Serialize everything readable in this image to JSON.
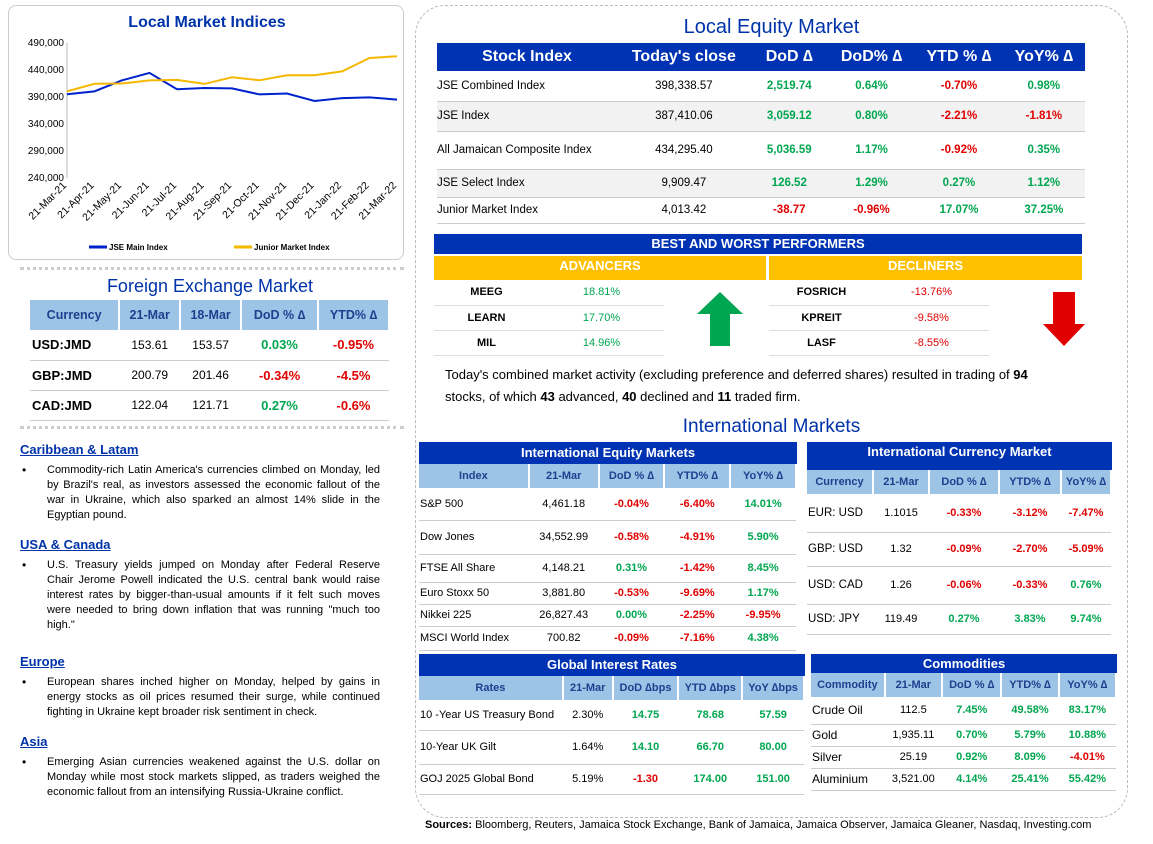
{
  "chart": {
    "title": "Local Market Indices",
    "chart_data": {
      "type": "line",
      "title": "Local Market Indices",
      "y_ticks": [
        "490,000",
        "440,000",
        "390,000",
        "340,000",
        "290,000",
        "240,000"
      ],
      "ylim": [
        240000,
        490000
      ],
      "x_ticks": [
        "21-Mar-21",
        "21-Apr-21",
        "21-May-21",
        "21-Jun-21",
        "21-Jul-21",
        "21-Aug-21",
        "21-Sep-21",
        "21-Oct-21",
        "21-Nov-21",
        "21-Dec-21",
        "21-Jan-22",
        "21-Feb-22",
        "21-Mar-22"
      ],
      "legend_position": "bottom",
      "series": [
        {
          "name": "JSE Main Index",
          "color": "#0022cc",
          "values": [
            395000,
            398000,
            425000,
            430000,
            408000,
            405000,
            405000,
            398000,
            392000,
            387000,
            385000,
            390000,
            387000
          ]
        },
        {
          "name": "Junior Market Index",
          "color": "#f5b800",
          "values": [
            405000,
            410000,
            418000,
            420000,
            420000,
            418000,
            422000,
            425000,
            428000,
            430000,
            440000,
            458000,
            470000
          ]
        }
      ]
    }
  },
  "fx": {
    "title": "Foreign Exchange Market",
    "headers": [
      "Currency",
      "21-Mar",
      "18-Mar",
      "DoD % ∆",
      "YTD% ∆"
    ],
    "rows": [
      {
        "cur": "USD:JMD",
        "a": "153.61",
        "b": "153.57",
        "dod": "0.03%",
        "ytd": "-0.95%"
      },
      {
        "cur": "GBP:JMD",
        "a": "200.79",
        "b": "201.46",
        "dod": "-0.34%",
        "ytd": "-4.5%"
      },
      {
        "cur": "CAD:JMD",
        "a": "122.04",
        "b": "121.71",
        "dod": "0.27%",
        "ytd": "-0.6%"
      }
    ]
  },
  "news": [
    {
      "head": "Caribbean & Latam",
      "body": "Commodity-rich Latin America's currencies climbed on Monday, led by Brazil's real, as investors assessed the economic fallout of the war in Ukraine, which also sparked an almost 14% slide in the Egyptian pound."
    },
    {
      "head": "USA & Canada",
      "body": "U.S. Treasury yields jumped on Monday after Federal Reserve Chair Jerome Powell indicated the U.S. central bank would raise interest rates by bigger-than-usual amounts if it felt such moves were needed to bring down inflation that was running \"much too high.\""
    },
    {
      "head": "Europe",
      "body": "European shares inched higher on Monday, helped by gains in energy stocks as oil prices resumed their surge, while continued fighting in Ukraine kept broader risk sentiment in check."
    },
    {
      "head": "Asia",
      "body": "Emerging Asian currencies weakened against the U.S. dollar on Monday while most stock markets slipped, as traders weighed the economic fallout from an intensifying Russia-Ukraine conflict."
    }
  ],
  "equity": {
    "title": "Local Equity Market",
    "headers": [
      "Stock Index",
      "Today's close",
      "DoD  ∆",
      "DoD% ∆",
      "YTD % ∆",
      "YoY% ∆"
    ],
    "rows": [
      {
        "name": "JSE Combined Index",
        "close": "398,338.57",
        "dod": "2,519.74",
        "dodp": "0.64%",
        "ytd": "-0.70%",
        "yoy": "0.98%"
      },
      {
        "name": "JSE Index",
        "close": "387,410.06",
        "dod": "3,059.12",
        "dodp": "0.80%",
        "ytd": "-2.21%",
        "yoy": "-1.81%"
      },
      {
        "name": "All Jamaican Composite Index",
        "close": "434,295.40",
        "dod": "5,036.59",
        "dodp": "1.17%",
        "ytd": "-0.92%",
        "yoy": "0.35%"
      },
      {
        "name": "JSE Select Index",
        "close": "9,909.47",
        "dod": "126.52",
        "dodp": "1.29%",
        "ytd": "0.27%",
        "yoy": "1.12%"
      },
      {
        "name": "Junior Market Index",
        "close": "4,013.42",
        "dod": "-38.77",
        "dodp": "-0.96%",
        "ytd": "17.07%",
        "yoy": "37.25%"
      }
    ]
  },
  "performers": {
    "title": "BEST AND WORST PERFORMERS",
    "adv_label": "ADVANCERS",
    "dec_label": "DECLINERS",
    "advancers": [
      {
        "s": "MEEG",
        "v": "18.81%"
      },
      {
        "s": "LEARN",
        "v": "17.70%"
      },
      {
        "s": "MIL",
        "v": "14.96%"
      }
    ],
    "decliners": [
      {
        "s": "FOSRICH",
        "v": "-13.76%"
      },
      {
        "s": "KPREIT",
        "v": "-9.58%"
      },
      {
        "s": "LASF",
        "v": "-8.55%"
      }
    ]
  },
  "summary": {
    "p1": "Today's combined market activity (excluding preference and deferred shares) resulted in trading of ",
    "n1": "94",
    "p2": "stocks, of which ",
    "n2": "43",
    "p3": " advanced, ",
    "n3": "40",
    "p4": " declined and ",
    "n4": "11",
    "p5": " traded firm."
  },
  "intl": {
    "title": "International Markets",
    "equity": {
      "title": "International Equity Markets",
      "headers": [
        "Index",
        "21-Mar",
        "DoD % ∆",
        "YTD% ∆",
        "YoY% ∆"
      ],
      "rows": [
        {
          "n": "S&P 500",
          "v": "4,461.18",
          "d": "-0.04%",
          "y": "-6.40%",
          "yy": "14.01%"
        },
        {
          "n": "Dow Jones",
          "v": "34,552.99",
          "d": "-0.58%",
          "y": "-4.91%",
          "yy": "5.90%"
        },
        {
          "n": "FTSE All Share",
          "v": "4,148.21",
          "d": "0.31%",
          "y": "-1.42%",
          "yy": "8.45%"
        },
        {
          "n": "Euro Stoxx 50",
          "v": "3,881.80",
          "d": "-0.53%",
          "y": "-9.69%",
          "yy": "1.17%"
        },
        {
          "n": "Nikkei 225",
          "v": "26,827.43",
          "d": "0.00%",
          "y": "-2.25%",
          "yy": "-9.95%"
        },
        {
          "n": "MSCI World Index",
          "v": "700.82",
          "d": "-0.09%",
          "y": "-7.16%",
          "yy": "4.38%"
        }
      ]
    },
    "currency": {
      "title": "International Currency Market",
      "headers": [
        "Currency",
        "21-Mar",
        "DoD % ∆",
        "YTD% ∆",
        "YoY% ∆"
      ],
      "rows": [
        {
          "n": "EUR: USD",
          "v": "1.1015",
          "d": "-0.33%",
          "y": "-3.12%",
          "yy": "-7.47%"
        },
        {
          "n": "GBP: USD",
          "v": "1.32",
          "d": "-0.09%",
          "y": "-2.70%",
          "yy": "-5.09%"
        },
        {
          "n": "USD: CAD",
          "v": "1.26",
          "d": "-0.06%",
          "y": "-0.33%",
          "yy": "0.76%"
        },
        {
          "n": "USD: JPY",
          "v": "119.49",
          "d": "0.27%",
          "y": "3.83%",
          "yy": "9.74%"
        }
      ]
    },
    "rates": {
      "title": "Global Interest Rates",
      "headers": [
        "Rates",
        "21-Mar",
        "DoD ∆bps",
        "YTD ∆bps",
        "YoY ∆bps"
      ],
      "rows": [
        {
          "n": "10 -Year US Treasury Bond",
          "v": "2.30%",
          "d": "14.75",
          "y": "78.68",
          "yy": "57.59"
        },
        {
          "n": "10-Year UK Gilt",
          "v": "1.64%",
          "d": "14.10",
          "y": "66.70",
          "yy": "80.00"
        },
        {
          "n": "GOJ 2025 Global Bond",
          "v": "5.19%",
          "d": "-1.30",
          "y": "174.00",
          "yy": "151.00"
        }
      ]
    },
    "commod": {
      "title": "Commodities",
      "headers": [
        "Commodity",
        "21-Mar",
        "DoD % ∆",
        "YTD% ∆",
        "YoY% ∆"
      ],
      "rows": [
        {
          "n": "Crude Oil",
          "v": "112.5",
          "d": "7.45%",
          "y": "49.58%",
          "yy": "83.17%"
        },
        {
          "n": "Gold",
          "v": "1,935.11",
          "d": "0.70%",
          "y": "5.79%",
          "yy": "10.88%"
        },
        {
          "n": "Silver",
          "v": "25.19",
          "d": "0.92%",
          "y": "8.09%",
          "yy": "-4.01%"
        },
        {
          "n": "Aluminium",
          "v": "3,521.00",
          "d": "4.14%",
          "y": "25.41%",
          "yy": "55.42%"
        }
      ]
    }
  },
  "sources": {
    "label": "Sources:",
    "text": " Bloomberg, Reuters, Jamaica Stock Exchange, Bank of Jamaica, Jamaica Observer, Jamaica Gleaner, Nasdaq, Investing.com"
  }
}
